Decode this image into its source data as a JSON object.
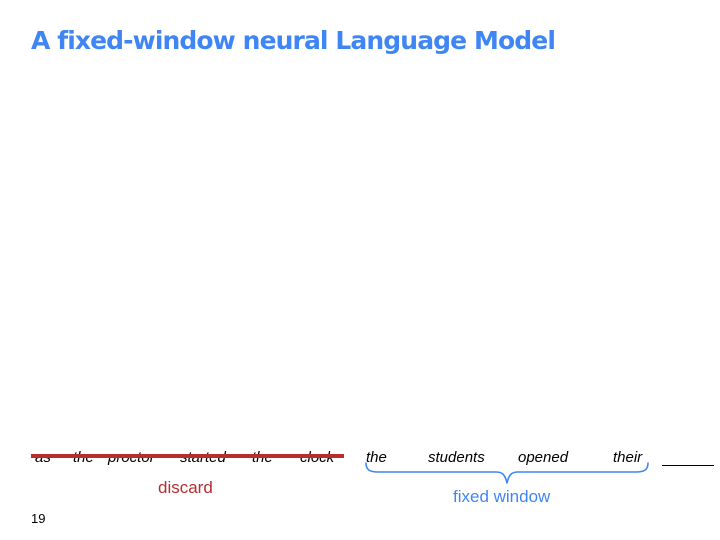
{
  "slide": {
    "title": "A fixed-window neural Language Model",
    "page_number": "19"
  },
  "sentence": {
    "discarded_words": [
      "as",
      "the",
      "proctor",
      "started",
      "the",
      "clock"
    ],
    "window_words": [
      "the",
      "students",
      "opened",
      "their"
    ]
  },
  "labels": {
    "discard": "discard",
    "fixed_window": "fixed window"
  },
  "colors": {
    "title": "#3f86f4",
    "discard": "#b82d2d",
    "window": "#3f86f4"
  }
}
